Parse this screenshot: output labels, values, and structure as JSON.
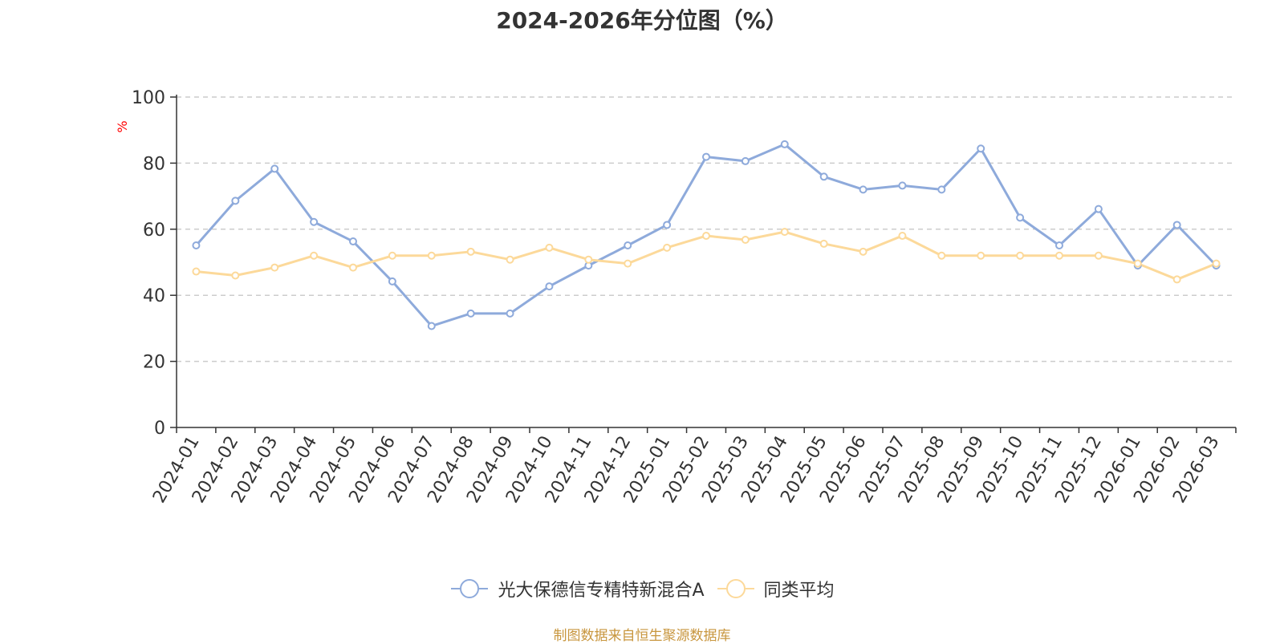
{
  "chart_data": {
    "type": "line",
    "title": "2024-2026年分位图（%）",
    "ylabel": "%",
    "ylim": [
      0,
      100
    ],
    "yticks": [
      0,
      20,
      40,
      60,
      80,
      100
    ],
    "grid": true,
    "legend_position": "bottom",
    "categories": [
      "2024-01",
      "2024-02",
      "2024-03",
      "2024-04",
      "2024-05",
      "2024-06",
      "2024-07",
      "2024-08",
      "2024-09",
      "2024-10",
      "2024-11",
      "2024-12",
      "2025-01",
      "2025-02",
      "2025-03",
      "2025-04",
      "2025-05",
      "2025-06",
      "2025-07",
      "2025-08",
      "2025-09",
      "2025-10",
      "2025-11",
      "2025-12",
      "2026-01",
      "2026-02",
      "2026-03"
    ],
    "series": [
      {
        "name": "光大保德信专精特新混合A",
        "color": "#8eaadb",
        "values": [
          55.1,
          68.6,
          78.3,
          62.2,
          56.3,
          44.2,
          30.7,
          34.5,
          34.5,
          42.7,
          49.0,
          55.1,
          61.3,
          81.9,
          80.6,
          85.7,
          75.9,
          72.0,
          73.2,
          72.0,
          84.4,
          63.5,
          55.1,
          66.1,
          49.0,
          61.3,
          49.0
        ]
      },
      {
        "name": "同类平均",
        "color": "#fcd99a",
        "values": [
          47.2,
          46.0,
          48.4,
          52.0,
          48.4,
          52.0,
          52.0,
          53.2,
          50.8,
          54.4,
          50.8,
          49.6,
          54.4,
          58.0,
          56.8,
          59.2,
          55.6,
          53.2,
          58.0,
          52.0,
          52.0,
          52.0,
          52.0,
          52.0,
          49.6,
          44.8,
          49.6
        ]
      }
    ]
  },
  "source_text": "制图数据来自恒生聚源数据库"
}
